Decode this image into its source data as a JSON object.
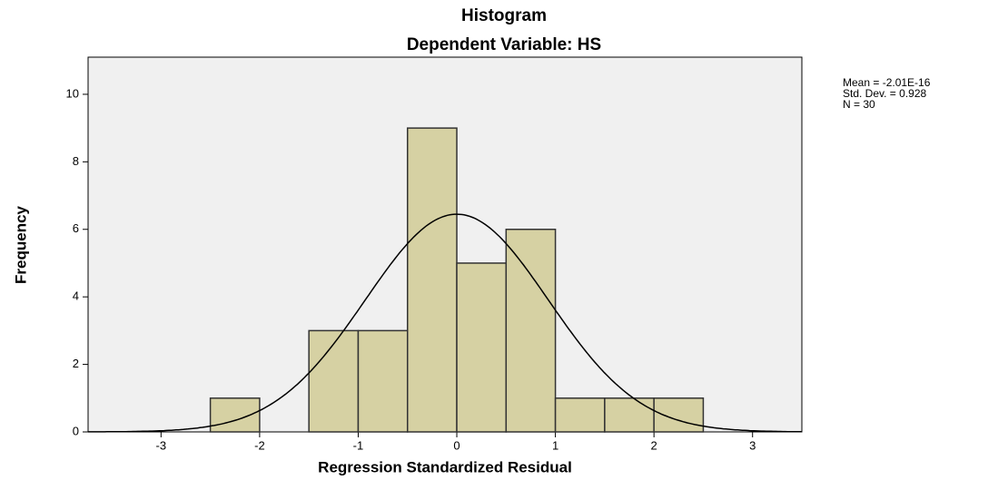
{
  "chart_data": {
    "type": "histogram",
    "title": "Histogram",
    "subtitle": "Dependent Variable: HS",
    "xlabel": "Regression Standardized Residual",
    "ylabel": "Frequency",
    "bins": [
      -2.5,
      -2,
      -1.5,
      -1,
      -0.5,
      0,
      0.5,
      1,
      1.5,
      2,
      2.5
    ],
    "values": [
      1,
      0,
      3,
      3,
      9,
      5,
      6,
      1,
      1,
      1
    ],
    "color": "#d6d1a3",
    "edge_color": "#333333",
    "background": "#f0f0f0",
    "xlim": [
      -3.74,
      3.5
    ],
    "xticks": [
      -3,
      -2,
      -1,
      0,
      1,
      2,
      3
    ],
    "ylim": [
      0,
      11.1
    ],
    "yticks": [
      0,
      2,
      4,
      6,
      8,
      10
    ],
    "normal_curve": true,
    "stats": [
      {
        "label": "Mean = -2.01E-16",
        "value": -2.01e-16
      },
      {
        "label": "Std. Dev. = 0.928",
        "value": 0.928
      },
      {
        "label": "N = 30",
        "value": 30
      }
    ]
  }
}
